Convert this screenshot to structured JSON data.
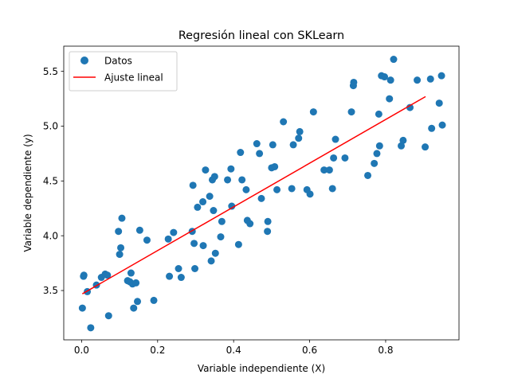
{
  "chart_data": {
    "type": "scatter",
    "title": "Regresión lineal con SKLearn",
    "xlabel": "Variable independiente (X)",
    "ylabel": "Variable dependiente (y)",
    "xlim": [
      -0.047,
      0.993
    ],
    "ylim": [
      3.05,
      5.73
    ],
    "x_ticks": [
      0.0,
      0.2,
      0.4,
      0.6,
      0.8
    ],
    "x_tick_labels": [
      "0.0",
      "0.2",
      "0.4",
      "0.6",
      "0.8"
    ],
    "y_ticks": [
      3.5,
      4.0,
      4.5,
      5.0,
      5.5
    ],
    "y_tick_labels": [
      "3.5",
      "4.0",
      "4.5",
      "5.0",
      "5.5"
    ],
    "grid": false,
    "legend": {
      "position": "upper-left",
      "entries": [
        {
          "label": "Datos",
          "kind": "marker",
          "color": "#1f77b4"
        },
        {
          "label": "Ajuste lineal",
          "kind": "line",
          "color": "#ff0000"
        }
      ]
    },
    "series": [
      {
        "name": "Datos",
        "kind": "scatter",
        "color": "#1f77b4",
        "points": [
          [
            0.002,
            3.34
          ],
          [
            0.005,
            3.63
          ],
          [
            0.006,
            3.64
          ],
          [
            0.015,
            3.49
          ],
          [
            0.024,
            3.16
          ],
          [
            0.039,
            3.55
          ],
          [
            0.052,
            3.62
          ],
          [
            0.062,
            3.65
          ],
          [
            0.068,
            3.64
          ],
          [
            0.071,
            3.27
          ],
          [
            0.097,
            4.04
          ],
          [
            0.1,
            3.83
          ],
          [
            0.103,
            3.89
          ],
          [
            0.106,
            4.16
          ],
          [
            0.121,
            3.59
          ],
          [
            0.127,
            3.58
          ],
          [
            0.13,
            3.66
          ],
          [
            0.134,
            3.56
          ],
          [
            0.137,
            3.34
          ],
          [
            0.143,
            3.57
          ],
          [
            0.147,
            3.4
          ],
          [
            0.153,
            4.05
          ],
          [
            0.172,
            3.96
          ],
          [
            0.19,
            3.41
          ],
          [
            0.228,
            3.97
          ],
          [
            0.231,
            3.63
          ],
          [
            0.242,
            4.03
          ],
          [
            0.255,
            3.7
          ],
          [
            0.262,
            3.62
          ],
          [
            0.291,
            4.04
          ],
          [
            0.293,
            4.46
          ],
          [
            0.296,
            3.93
          ],
          [
            0.298,
            3.7
          ],
          [
            0.305,
            4.26
          ],
          [
            0.319,
            4.31
          ],
          [
            0.32,
            3.91
          ],
          [
            0.326,
            4.6
          ],
          [
            0.337,
            4.36
          ],
          [
            0.341,
            3.77
          ],
          [
            0.344,
            4.51
          ],
          [
            0.347,
            4.23
          ],
          [
            0.35,
            4.54
          ],
          [
            0.352,
            3.84
          ],
          [
            0.366,
            3.99
          ],
          [
            0.369,
            4.13
          ],
          [
            0.384,
            4.51
          ],
          [
            0.393,
            4.61
          ],
          [
            0.395,
            4.27
          ],
          [
            0.413,
            3.92
          ],
          [
            0.418,
            4.76
          ],
          [
            0.422,
            4.51
          ],
          [
            0.433,
            4.42
          ],
          [
            0.436,
            4.14
          ],
          [
            0.443,
            4.11
          ],
          [
            0.461,
            4.84
          ],
          [
            0.468,
            4.75
          ],
          [
            0.473,
            4.34
          ],
          [
            0.489,
            4.04
          ],
          [
            0.49,
            4.13
          ],
          [
            0.5,
            4.62
          ],
          [
            0.503,
            4.83
          ],
          [
            0.508,
            4.63
          ],
          [
            0.514,
            4.42
          ],
          [
            0.531,
            5.04
          ],
          [
            0.553,
            4.43
          ],
          [
            0.557,
            4.83
          ],
          [
            0.571,
            4.89
          ],
          [
            0.574,
            4.95
          ],
          [
            0.593,
            4.42
          ],
          [
            0.601,
            4.38
          ],
          [
            0.61,
            5.13
          ],
          [
            0.638,
            4.6
          ],
          [
            0.652,
            4.6
          ],
          [
            0.66,
            4.43
          ],
          [
            0.663,
            4.71
          ],
          [
            0.668,
            4.88
          ],
          [
            0.693,
            4.71
          ],
          [
            0.71,
            5.13
          ],
          [
            0.715,
            5.37
          ],
          [
            0.716,
            5.4
          ],
          [
            0.753,
            4.55
          ],
          [
            0.77,
            4.66
          ],
          [
            0.777,
            4.75
          ],
          [
            0.782,
            5.11
          ],
          [
            0.784,
            4.82
          ],
          [
            0.789,
            5.46
          ],
          [
            0.797,
            5.45
          ],
          [
            0.81,
            5.25
          ],
          [
            0.813,
            5.42
          ],
          [
            0.821,
            5.61
          ],
          [
            0.841,
            4.82
          ],
          [
            0.846,
            4.87
          ],
          [
            0.864,
            5.17
          ],
          [
            0.883,
            5.42
          ],
          [
            0.904,
            4.81
          ],
          [
            0.918,
            5.43
          ],
          [
            0.921,
            4.98
          ],
          [
            0.941,
            5.21
          ],
          [
            0.947,
            5.46
          ],
          [
            0.949,
            5.01
          ]
        ]
      },
      {
        "name": "Ajuste lineal",
        "kind": "line",
        "color": "#ff0000",
        "points": [
          [
            0.002,
            3.47
          ],
          [
            0.905,
            5.27
          ]
        ]
      }
    ]
  }
}
